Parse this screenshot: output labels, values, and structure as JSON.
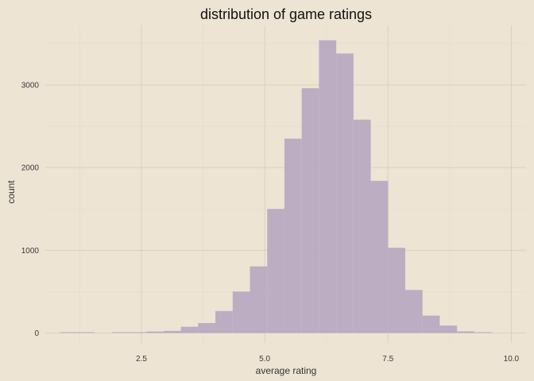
{
  "chart_data": {
    "type": "bar",
    "title": "distribution of game ratings",
    "xlabel": "average rating",
    "ylabel": "count",
    "xlim": [
      0.55,
      10.3
    ],
    "ylim": [
      -120,
      3720
    ],
    "x_ticks": [
      2.5,
      5.0,
      7.5,
      10.0
    ],
    "x_tick_labels": [
      "2.5",
      "5.0",
      "7.5",
      "10.0"
    ],
    "y_ticks": [
      0,
      1000,
      2000,
      3000
    ],
    "y_tick_labels": [
      "0",
      "1000",
      "2000",
      "3000"
    ],
    "grid": true,
    "bin_width": 0.35,
    "bins": [
      {
        "start": 0.85,
        "end": 1.2,
        "count": 8
      },
      {
        "start": 1.2,
        "end": 1.55,
        "count": 8
      },
      {
        "start": 1.55,
        "end": 1.9,
        "count": 0
      },
      {
        "start": 1.9,
        "end": 2.25,
        "count": 5
      },
      {
        "start": 2.25,
        "end": 2.6,
        "count": 5
      },
      {
        "start": 2.6,
        "end": 2.95,
        "count": 18
      },
      {
        "start": 2.95,
        "end": 3.3,
        "count": 25
      },
      {
        "start": 3.3,
        "end": 3.65,
        "count": 75
      },
      {
        "start": 3.65,
        "end": 4.0,
        "count": 120
      },
      {
        "start": 4.0,
        "end": 4.35,
        "count": 265
      },
      {
        "start": 4.35,
        "end": 4.7,
        "count": 500
      },
      {
        "start": 4.7,
        "end": 5.05,
        "count": 805
      },
      {
        "start": 5.05,
        "end": 5.4,
        "count": 1500
      },
      {
        "start": 5.4,
        "end": 5.75,
        "count": 2350
      },
      {
        "start": 5.75,
        "end": 6.1,
        "count": 2960
      },
      {
        "start": 6.1,
        "end": 6.45,
        "count": 3540
      },
      {
        "start": 6.45,
        "end": 6.8,
        "count": 3380
      },
      {
        "start": 6.8,
        "end": 7.15,
        "count": 2580
      },
      {
        "start": 7.15,
        "end": 7.5,
        "count": 1840
      },
      {
        "start": 7.5,
        "end": 7.85,
        "count": 1030
      },
      {
        "start": 7.85,
        "end": 8.2,
        "count": 520
      },
      {
        "start": 8.2,
        "end": 8.55,
        "count": 210
      },
      {
        "start": 8.55,
        "end": 8.9,
        "count": 90
      },
      {
        "start": 8.9,
        "end": 9.25,
        "count": 20
      },
      {
        "start": 9.25,
        "end": 9.6,
        "count": 8
      }
    ],
    "colors": {
      "background": "#ede4d4",
      "bar_fill": "#bcadc3",
      "grid_major": "#d9d0bf",
      "grid_minor": "#e3dacb"
    }
  }
}
